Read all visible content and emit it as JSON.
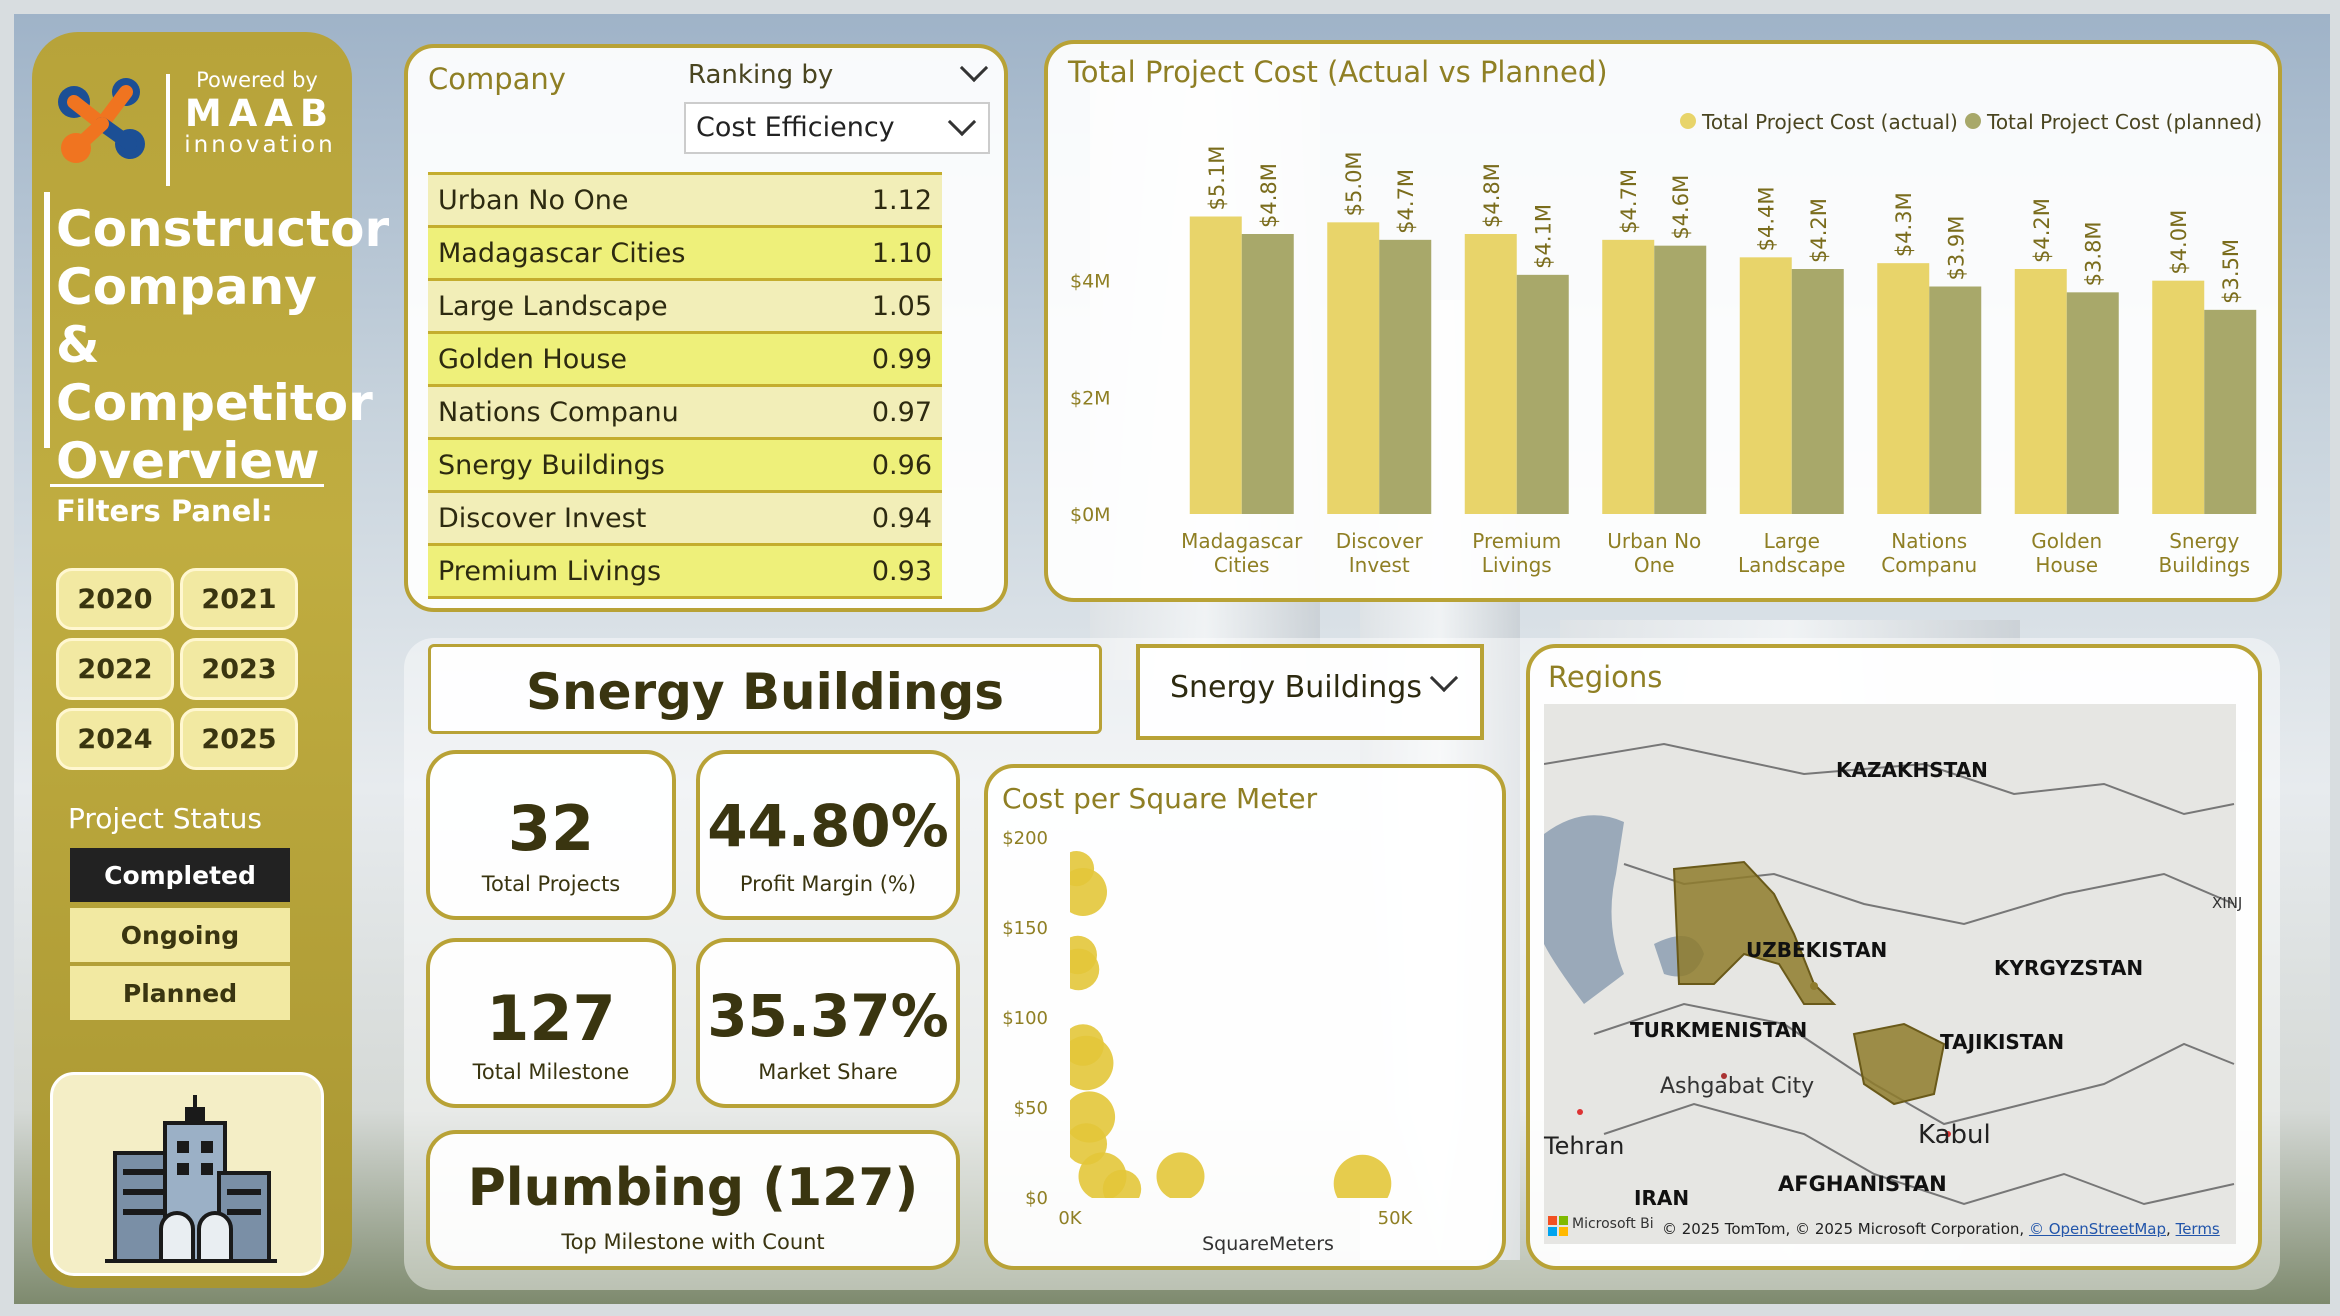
{
  "brand": {
    "powered_by": "Powered by",
    "name": "MAAB",
    "sub": "innovation"
  },
  "sidebar": {
    "title_lines": [
      "Constructor",
      "Company &",
      "Competitor",
      "Overview"
    ],
    "filters_label": "Filters Panel:",
    "years": [
      "2020",
      "2021",
      "2022",
      "2023",
      "2024",
      "2025"
    ],
    "status_label": "Project Status",
    "statuses": [
      "Completed",
      "Ongoing",
      "Planned"
    ],
    "selected_status": "Completed"
  },
  "ranking": {
    "company_label": "Company",
    "ranking_by_label": "Ranking by",
    "metric": "Cost Efficiency",
    "rows": [
      {
        "name": "Urban No One",
        "value": "1.12"
      },
      {
        "name": "Madagascar Cities",
        "value": "1.10"
      },
      {
        "name": "Large Landscape",
        "value": "1.05"
      },
      {
        "name": "Golden House",
        "value": "0.99"
      },
      {
        "name": "Nations Companu",
        "value": "0.97"
      },
      {
        "name": "Snergy Buildings",
        "value": "0.96"
      },
      {
        "name": "Discover Invest",
        "value": "0.94"
      },
      {
        "name": "Premium Livings",
        "value": "0.93"
      }
    ]
  },
  "selected_company": {
    "title": "Snergy Buildings",
    "dropdown": "Snergy Buildings"
  },
  "kpis": {
    "total_projects": {
      "value": "32",
      "label": "Total Projects"
    },
    "profit_margin": {
      "value": "44.80%",
      "label": "Profit Margin (%)"
    },
    "total_milestone": {
      "value": "127",
      "label": "Total Milestone"
    },
    "market_share": {
      "value": "35.37%",
      "label": "Market Share"
    },
    "top_milestone": {
      "value": "Plumbing (127)",
      "label": "Top Milestone with Count"
    }
  },
  "map": {
    "title": "Regions",
    "labels": [
      "KAZAKHSTAN",
      "UZBEKISTAN",
      "KYRGYZSTAN",
      "TURKMENISTAN",
      "TAJIKISTAN",
      "Ashgabat City",
      "Tehran",
      "Kabul",
      "AFGHANISTAN",
      "IRAN",
      "XINJ"
    ],
    "attribution": "© 2025 TomTom, © 2025 Microsoft Corporation,",
    "osm": "© OpenStreetMap",
    "terms": "Terms",
    "ms_label": "Microsoft Bi"
  },
  "colors": {
    "accent": "#b8a236",
    "actual": "#e8d46a",
    "planned": "#a8a86a",
    "highlight": "#eaea78",
    "bubble": "#e3c63a"
  },
  "chart_data": [
    {
      "type": "bar",
      "title": "Total Project Cost (Actual vs Planned)",
      "categories": [
        "Madagascar Cities",
        "Discover Invest",
        "Premium Livings",
        "Urban No One",
        "Large Landscape",
        "Nations Companu",
        "Golden House",
        "Snergy Buildings"
      ],
      "series": [
        {
          "name": "Total Project Cost (actual)",
          "values": [
            5.1,
            5.0,
            4.8,
            4.7,
            4.4,
            4.3,
            4.2,
            4.0
          ],
          "labels": [
            "$5.1M",
            "$5.0M",
            "$4.8M",
            "$4.7M",
            "$4.4M",
            "$4.3M",
            "$4.2M",
            "$4.0M"
          ],
          "color": "#e8d46a"
        },
        {
          "name": "Total Project Cost (planned)",
          "values": [
            4.8,
            4.7,
            4.1,
            4.6,
            4.2,
            3.9,
            3.8,
            3.5
          ],
          "labels": [
            "$4.8M",
            "$4.7M",
            "$4.1M",
            "$4.6M",
            "$4.2M",
            "$3.9M",
            "$3.8M",
            "$3.5M"
          ],
          "color": "#a8a86a"
        }
      ],
      "y_ticks": [
        "$0M",
        "$2M",
        "$4M"
      ],
      "y_tick_values": [
        0,
        2,
        4
      ],
      "ylim": [
        0,
        6
      ],
      "legend": "top-right"
    },
    {
      "type": "scatter",
      "title": "Cost per Square Meter",
      "xlabel": "SquareMeters",
      "x_ticks": [
        "0K",
        "50K"
      ],
      "x_tick_values": [
        0,
        50
      ],
      "y_ticks": [
        "$0",
        "$50",
        "$100",
        "$150",
        "$200"
      ],
      "y_tick_values": [
        0,
        50,
        100,
        150,
        200
      ],
      "xlim": [
        0,
        52
      ],
      "ylim": [
        0,
        200
      ],
      "points": [
        {
          "x": 1.0,
          "y": 183,
          "r": 2.2
        },
        {
          "x": 2.0,
          "y": 170,
          "r": 3.0
        },
        {
          "x": 1.2,
          "y": 135,
          "r": 2.4
        },
        {
          "x": 1.3,
          "y": 127,
          "r": 2.6
        },
        {
          "x": 2.5,
          "y": 75,
          "r": 3.4
        },
        {
          "x": 2.0,
          "y": 85,
          "r": 2.6
        },
        {
          "x": 3.0,
          "y": 45,
          "r": 3.2
        },
        {
          "x": 2.5,
          "y": 30,
          "r": 2.6
        },
        {
          "x": 5.0,
          "y": 12,
          "r": 3.0
        },
        {
          "x": 8.0,
          "y": 5,
          "r": 2.4
        },
        {
          "x": 17.0,
          "y": 12,
          "r": 3.0
        },
        {
          "x": 45.0,
          "y": 8,
          "r": 3.6
        }
      ]
    }
  ]
}
